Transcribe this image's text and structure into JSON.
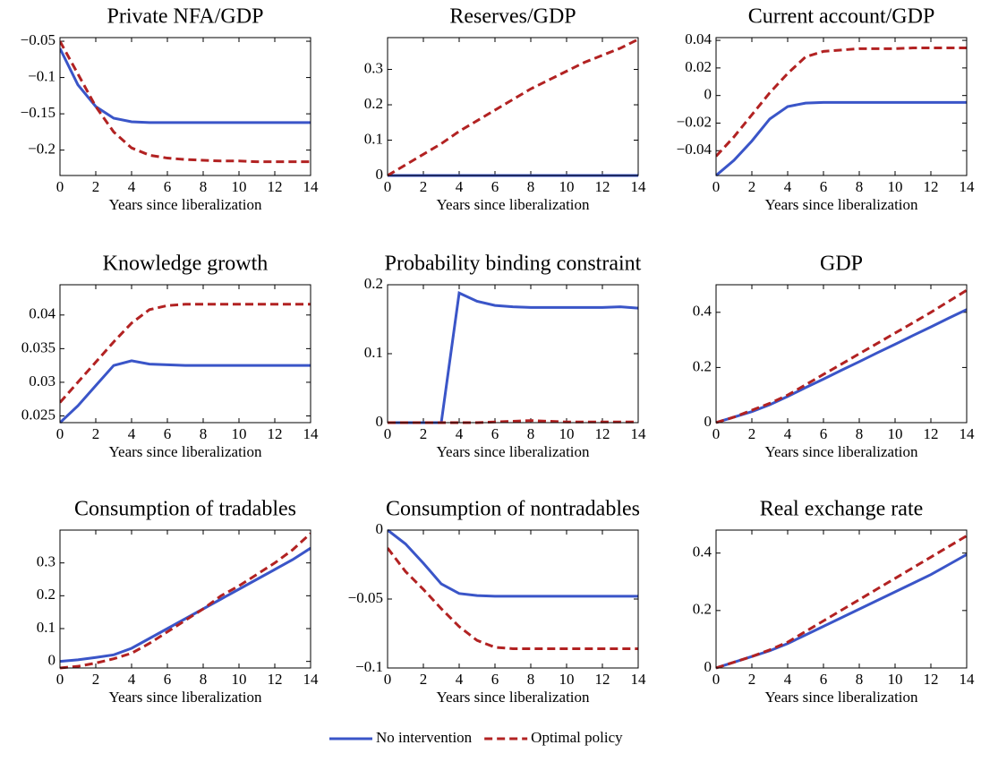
{
  "chart_data": [
    {
      "type": "line",
      "title": "Private NFA/GDP",
      "xlabel": "Years since liberalization",
      "x": [
        0,
        1,
        2,
        3,
        4,
        5,
        6,
        7,
        8,
        9,
        10,
        11,
        12,
        13,
        14
      ],
      "xlim": [
        0,
        14
      ],
      "xticks": [
        0,
        2,
        4,
        6,
        8,
        10,
        12,
        14
      ],
      "ylim": [
        -0.235,
        -0.045
      ],
      "yticks": [
        {
          "value": -0.2,
          "label": "−0.2"
        },
        {
          "value": -0.15,
          "label": "−0.15"
        },
        {
          "value": -0.1,
          "label": "−0.1"
        },
        {
          "value": -0.05,
          "label": "−0.05"
        }
      ],
      "series": [
        {
          "name": "No intervention",
          "color": "#3a55c8",
          "line_style": "solid",
          "values": [
            -0.06,
            -0.11,
            -0.14,
            -0.156,
            -0.161,
            -0.162,
            -0.162,
            -0.162,
            -0.162,
            -0.162,
            -0.162,
            -0.162,
            -0.162,
            -0.162,
            -0.162
          ]
        },
        {
          "name": "Optimal policy",
          "color": "#b22222",
          "line_style": "dashed",
          "values": [
            -0.05,
            -0.095,
            -0.14,
            -0.175,
            -0.197,
            -0.207,
            -0.211,
            -0.213,
            -0.214,
            -0.215,
            -0.215,
            -0.216,
            -0.216,
            -0.216,
            -0.216
          ]
        }
      ],
      "legend": "bottom"
    },
    {
      "type": "line",
      "title": "Reserves/GDP",
      "xlabel": "Years since liberalization",
      "x": [
        0,
        1,
        2,
        3,
        4,
        5,
        6,
        7,
        8,
        9,
        10,
        11,
        12,
        13,
        14
      ],
      "xlim": [
        0,
        14
      ],
      "xticks": [
        0,
        2,
        4,
        6,
        8,
        10,
        12,
        14
      ],
      "ylim": [
        0,
        0.39
      ],
      "yticks": [
        0,
        0.1,
        0.2,
        0.3
      ],
      "series": [
        {
          "name": "No intervention",
          "color": "#3a55c8",
          "line_style": "solid",
          "values": [
            0,
            0,
            0,
            0,
            0,
            0,
            0,
            0,
            0,
            0,
            0,
            0,
            0,
            0,
            0
          ]
        },
        {
          "name": "Optimal policy",
          "color": "#b22222",
          "line_style": "dashed",
          "values": [
            0,
            0.03,
            0.06,
            0.09,
            0.125,
            0.155,
            0.185,
            0.215,
            0.245,
            0.27,
            0.295,
            0.32,
            0.34,
            0.36,
            0.385
          ]
        }
      ]
    },
    {
      "type": "line",
      "title": "Current account/GDP",
      "xlabel": "Years since liberalization",
      "x": [
        0,
        1,
        2,
        3,
        4,
        5,
        6,
        7,
        8,
        9,
        10,
        11,
        12,
        13,
        14
      ],
      "xlim": [
        0,
        14
      ],
      "xticks": [
        0,
        2,
        4,
        6,
        8,
        10,
        12,
        14
      ],
      "ylim": [
        -0.058,
        0.042
      ],
      "yticks": [
        {
          "value": -0.04,
          "label": "−0.04"
        },
        {
          "value": -0.02,
          "label": "−0.02"
        },
        0,
        0.02,
        0.04
      ],
      "series": [
        {
          "name": "No intervention",
          "color": "#3a55c8",
          "line_style": "solid",
          "values": [
            -0.058,
            -0.047,
            -0.033,
            -0.017,
            -0.008,
            -0.0055,
            -0.005,
            -0.005,
            -0.005,
            -0.005,
            -0.005,
            -0.005,
            -0.005,
            -0.005,
            -0.005
          ]
        },
        {
          "name": "Optimal policy",
          "color": "#b22222",
          "line_style": "dashed",
          "values": [
            -0.044,
            -0.03,
            -0.014,
            0.002,
            0.016,
            0.028,
            0.032,
            0.033,
            0.034,
            0.034,
            0.034,
            0.0345,
            0.0345,
            0.0345,
            0.0345
          ]
        }
      ]
    },
    {
      "type": "line",
      "title": "Knowledge growth",
      "xlabel": "Years since liberalization",
      "x": [
        0,
        1,
        2,
        3,
        4,
        5,
        6,
        7,
        8,
        9,
        10,
        11,
        12,
        13,
        14
      ],
      "xlim": [
        0,
        14
      ],
      "xticks": [
        0,
        2,
        4,
        6,
        8,
        10,
        12,
        14
      ],
      "ylim": [
        0.024,
        0.0445
      ],
      "yticks": [
        0.025,
        0.03,
        0.035,
        0.04
      ],
      "series": [
        {
          "name": "No intervention",
          "color": "#3a55c8",
          "line_style": "solid",
          "values": [
            0.024,
            0.0265,
            0.0295,
            0.0325,
            0.0332,
            0.0327,
            0.0326,
            0.0325,
            0.0325,
            0.0325,
            0.0325,
            0.0325,
            0.0325,
            0.0325,
            0.0325
          ]
        },
        {
          "name": "Optimal policy",
          "color": "#b22222",
          "line_style": "dashed",
          "values": [
            0.027,
            0.03,
            0.033,
            0.036,
            0.0388,
            0.0408,
            0.0414,
            0.0416,
            0.0416,
            0.0416,
            0.0416,
            0.0416,
            0.0416,
            0.0416,
            0.0416
          ]
        }
      ]
    },
    {
      "type": "line",
      "title": "Probability binding constraint",
      "xlabel": "Years since liberalization",
      "x": [
        0,
        1,
        2,
        3,
        4,
        5,
        6,
        7,
        8,
        9,
        10,
        11,
        12,
        13,
        14
      ],
      "xlim": [
        0,
        14
      ],
      "xticks": [
        0,
        2,
        4,
        6,
        8,
        10,
        12,
        14
      ],
      "ylim": [
        0,
        0.2
      ],
      "yticks": [
        0,
        0.1,
        0.2
      ],
      "series": [
        {
          "name": "No intervention",
          "color": "#3a55c8",
          "line_style": "solid",
          "values": [
            0,
            0,
            0,
            0,
            0.188,
            0.176,
            0.17,
            0.168,
            0.167,
            0.167,
            0.167,
            0.167,
            0.167,
            0.168,
            0.166
          ]
        },
        {
          "name": "Optimal policy",
          "color": "#b22222",
          "line_style": "dashed",
          "values": [
            0,
            0,
            0,
            0,
            0,
            0,
            0.001,
            0.002,
            0.003,
            0.002,
            0.001,
            0.001,
            0.001,
            0.001,
            0.001
          ]
        }
      ]
    },
    {
      "type": "line",
      "title": "GDP",
      "xlabel": "Years since liberalization",
      "x": [
        0,
        1,
        2,
        3,
        4,
        5,
        6,
        7,
        8,
        9,
        10,
        11,
        12,
        13,
        14
      ],
      "xlim": [
        0,
        14
      ],
      "xticks": [
        0,
        2,
        4,
        6,
        8,
        10,
        12,
        14
      ],
      "ylim": [
        0,
        0.5
      ],
      "yticks": [
        0,
        0.2,
        0.4
      ],
      "series": [
        {
          "name": "No intervention",
          "color": "#3a55c8",
          "line_style": "solid",
          "values": [
            0,
            0.02,
            0.04,
            0.065,
            0.095,
            0.127,
            0.158,
            0.19,
            0.221,
            0.253,
            0.284,
            0.316,
            0.347,
            0.379,
            0.41
          ]
        },
        {
          "name": "Optimal policy",
          "color": "#b22222",
          "line_style": "dashed",
          "values": [
            0,
            0.02,
            0.045,
            0.07,
            0.1,
            0.137,
            0.175,
            0.212,
            0.25,
            0.287,
            0.325,
            0.362,
            0.4,
            0.44,
            0.48
          ]
        }
      ]
    },
    {
      "type": "line",
      "title": "Consumption of tradables",
      "xlabel": "Years since liberalization",
      "x": [
        0,
        1,
        2,
        3,
        4,
        5,
        6,
        7,
        8,
        9,
        10,
        11,
        12,
        13,
        14
      ],
      "xlim": [
        0,
        14
      ],
      "xticks": [
        0,
        2,
        4,
        6,
        8,
        10,
        12,
        14
      ],
      "ylim": [
        -0.02,
        0.4
      ],
      "yticks": [
        0,
        0.1,
        0.2,
        0.3
      ],
      "series": [
        {
          "name": "No intervention",
          "color": "#3a55c8",
          "line_style": "solid",
          "values": [
            0,
            0.005,
            0.012,
            0.02,
            0.04,
            0.07,
            0.1,
            0.13,
            0.16,
            0.19,
            0.22,
            0.25,
            0.28,
            0.31,
            0.345
          ]
        },
        {
          "name": "Optimal policy",
          "color": "#b22222",
          "line_style": "dashed",
          "values": [
            -0.02,
            -0.015,
            -0.005,
            0.008,
            0.025,
            0.055,
            0.09,
            0.125,
            0.16,
            0.2,
            0.23,
            0.265,
            0.3,
            0.34,
            0.39
          ]
        }
      ]
    },
    {
      "type": "line",
      "title": "Consumption of nontradables",
      "xlabel": "Years since liberalization",
      "x": [
        0,
        1,
        2,
        3,
        4,
        5,
        6,
        7,
        8,
        9,
        10,
        11,
        12,
        13,
        14
      ],
      "xlim": [
        0,
        14
      ],
      "xticks": [
        0,
        2,
        4,
        6,
        8,
        10,
        12,
        14
      ],
      "ylim": [
        -0.1,
        0
      ],
      "yticks": [
        {
          "value": -0.1,
          "label": "−0.1"
        },
        {
          "value": -0.05,
          "label": "−0.05"
        },
        0
      ],
      "series": [
        {
          "name": "No intervention",
          "color": "#3a55c8",
          "line_style": "solid",
          "values": [
            0,
            -0.01,
            -0.024,
            -0.039,
            -0.046,
            -0.0475,
            -0.048,
            -0.048,
            -0.048,
            -0.048,
            -0.048,
            -0.048,
            -0.048,
            -0.048,
            -0.048
          ]
        },
        {
          "name": "Optimal policy",
          "color": "#b22222",
          "line_style": "dashed",
          "values": [
            -0.013,
            -0.03,
            -0.043,
            -0.057,
            -0.07,
            -0.08,
            -0.085,
            -0.086,
            -0.086,
            -0.086,
            -0.086,
            -0.086,
            -0.086,
            -0.086,
            -0.086
          ]
        }
      ]
    },
    {
      "type": "line",
      "title": "Real exchange rate",
      "xlabel": "Years since liberalization",
      "x": [
        0,
        1,
        2,
        3,
        4,
        5,
        6,
        7,
        8,
        9,
        10,
        11,
        12,
        13,
        14
      ],
      "xlim": [
        0,
        14
      ],
      "xticks": [
        0,
        2,
        4,
        6,
        8,
        10,
        12,
        14
      ],
      "ylim": [
        0,
        0.48
      ],
      "yticks": [
        0,
        0.2,
        0.4
      ],
      "series": [
        {
          "name": "No intervention",
          "color": "#3a55c8",
          "line_style": "solid",
          "values": [
            0,
            0.02,
            0.04,
            0.06,
            0.085,
            0.115,
            0.145,
            0.175,
            0.205,
            0.235,
            0.265,
            0.295,
            0.325,
            0.36,
            0.395
          ]
        },
        {
          "name": "Optimal policy",
          "color": "#b22222",
          "line_style": "dashed",
          "values": [
            0,
            0.02,
            0.04,
            0.063,
            0.09,
            0.127,
            0.164,
            0.201,
            0.238,
            0.275,
            0.312,
            0.349,
            0.386,
            0.423,
            0.46
          ]
        }
      ]
    }
  ]
}
